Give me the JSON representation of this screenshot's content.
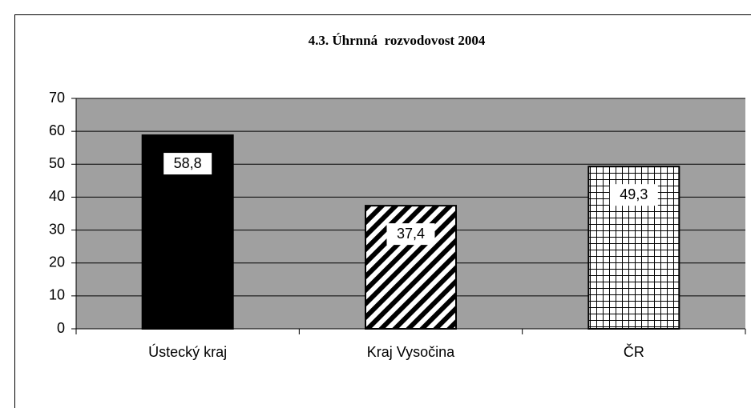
{
  "chart_data": {
    "type": "bar",
    "title": "4.3. Úhrnná  rozvodovost 2004",
    "categories": [
      "Ústecký kraj",
      "Kraj Vysočina",
      "ČR"
    ],
    "values": [
      58.8,
      37.4,
      49.3
    ],
    "value_labels": [
      "58,8",
      "37,4",
      "49,3"
    ],
    "patterns": [
      "solid",
      "diagonal",
      "grid"
    ],
    "color": "#000000",
    "background": "#a0a0a0",
    "ylim": [
      0,
      70
    ],
    "yticks": [
      0,
      10,
      20,
      30,
      40,
      50,
      60,
      70
    ],
    "grid": true
  }
}
